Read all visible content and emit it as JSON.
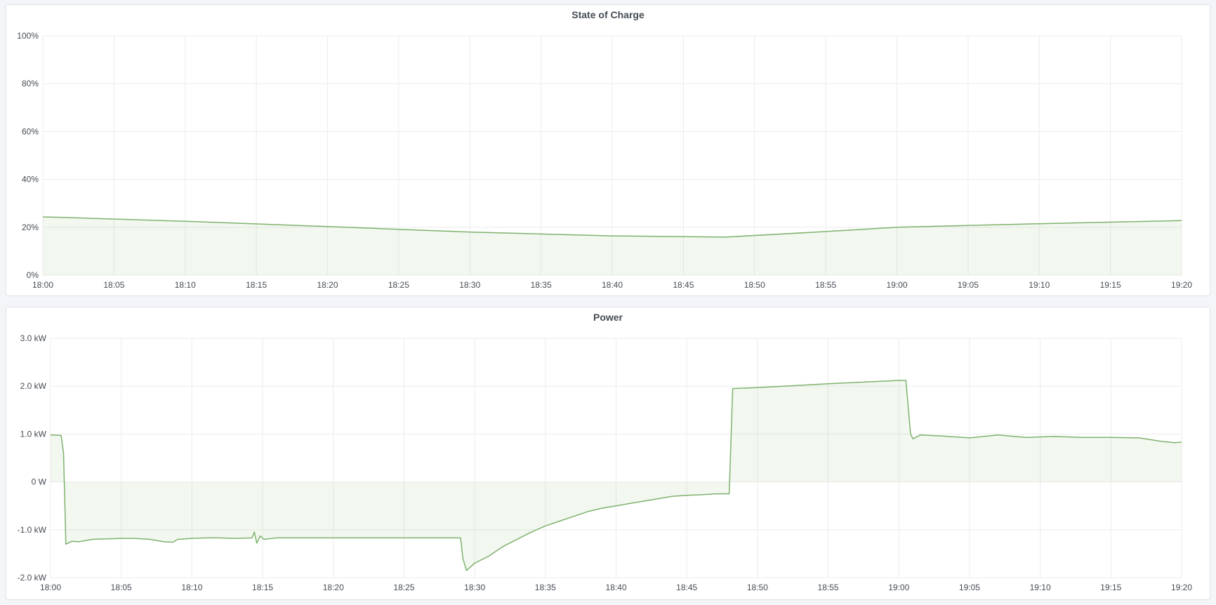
{
  "chart_data": [
    {
      "type": "area",
      "title": "State of Charge",
      "xlabel": "",
      "ylabel": "",
      "x_ticks": [
        "18:00",
        "18:05",
        "18:10",
        "18:15",
        "18:20",
        "18:25",
        "18:30",
        "18:35",
        "18:40",
        "18:45",
        "18:50",
        "18:55",
        "19:00",
        "19:05",
        "19:10",
        "19:15",
        "19:20"
      ],
      "y_ticks": [
        "0%",
        "20%",
        "40%",
        "60%",
        "80%",
        "100%"
      ],
      "y_tick_values": [
        0,
        20,
        40,
        60,
        80,
        100
      ],
      "xlim": [
        "18:00:00",
        "19:20:00"
      ],
      "ylim": [
        0,
        100
      ],
      "grid": true,
      "line_color": "#7eb26d",
      "series": [
        {
          "x": [
            "18:00:00",
            "18:01:00",
            "18:10:00",
            "18:20:00",
            "18:30:00",
            "18:40:00",
            "18:48:00",
            "18:55:00",
            "19:00:00",
            "19:10:00",
            "19:20:00"
          ],
          "values": [
            24.3,
            24.2,
            22.5,
            20.3,
            18.0,
            16.4,
            15.9,
            18.2,
            20.0,
            21.5,
            22.8
          ]
        }
      ]
    },
    {
      "type": "area",
      "title": "Power",
      "xlabel": "",
      "ylabel": "",
      "x_ticks": [
        "18:00",
        "18:05",
        "18:10",
        "18:15",
        "18:20",
        "18:25",
        "18:30",
        "18:35",
        "18:40",
        "18:45",
        "18:50",
        "18:55",
        "19:00",
        "19:05",
        "19:10",
        "19:15",
        "19:20"
      ],
      "y_ticks": [
        "-2.0 kW",
        "-1.0 kW",
        "0 W",
        "1.0 kW",
        "2.0 kW",
        "3.0 kW"
      ],
      "y_tick_values": [
        -2,
        -1,
        0,
        1,
        2,
        3
      ],
      "xlim": [
        "18:00:00",
        "19:20:00"
      ],
      "ylim": [
        -2,
        3
      ],
      "grid": true,
      "line_color": "#7eb26d",
      "series": [
        {
          "x": [
            "18:00:00",
            "18:00:45",
            "18:00:55",
            "18:01:05",
            "18:01:30",
            "18:02:00",
            "18:03:00",
            "18:04:00",
            "18:05:00",
            "18:06:00",
            "18:07:00",
            "18:08:00",
            "18:08:40",
            "18:09:00",
            "18:10:00",
            "18:11:00",
            "18:12:00",
            "18:13:00",
            "18:14:15",
            "18:14:25",
            "18:14:35",
            "18:14:50",
            "18:15:05",
            "18:16:00",
            "18:18:00",
            "18:20:00",
            "18:22:00",
            "18:24:00",
            "18:26:00",
            "18:28:00",
            "18:29:00",
            "18:29:10",
            "18:29:25",
            "18:30:00",
            "18:31:00",
            "18:32:00",
            "18:33:00",
            "18:34:00",
            "18:35:00",
            "18:36:00",
            "18:37:00",
            "18:38:00",
            "18:39:00",
            "18:40:00",
            "18:41:00",
            "18:42:00",
            "18:43:00",
            "18:44:00",
            "18:45:00",
            "18:46:00",
            "18:47:00",
            "18:48:00",
            "18:48:15",
            "18:50:00",
            "18:55:00",
            "19:00:00",
            "19:00:30",
            "19:00:50",
            "19:01:00",
            "19:01:30",
            "19:03:00",
            "19:05:00",
            "19:07:00",
            "19:09:00",
            "19:11:00",
            "19:13:00",
            "19:15:00",
            "19:17:00",
            "19:18:30",
            "19:19:30",
            "19:20:00"
          ],
          "values": [
            0.98,
            0.97,
            0.6,
            -1.3,
            -1.24,
            -1.25,
            -1.2,
            -1.19,
            -1.18,
            -1.18,
            -1.2,
            -1.25,
            -1.26,
            -1.2,
            -1.18,
            -1.17,
            -1.17,
            -1.18,
            -1.17,
            -1.05,
            -1.28,
            -1.13,
            -1.2,
            -1.17,
            -1.17,
            -1.17,
            -1.17,
            -1.17,
            -1.17,
            -1.17,
            -1.17,
            -1.6,
            -1.85,
            -1.7,
            -1.55,
            -1.35,
            -1.2,
            -1.05,
            -0.92,
            -0.82,
            -0.72,
            -0.62,
            -0.55,
            -0.5,
            -0.45,
            -0.4,
            -0.35,
            -0.3,
            -0.28,
            -0.27,
            -0.25,
            -0.25,
            1.95,
            1.97,
            2.05,
            2.12,
            2.12,
            1.0,
            0.9,
            0.98,
            0.96,
            0.92,
            0.98,
            0.93,
            0.95,
            0.93,
            0.93,
            0.92,
            0.85,
            0.82,
            0.83
          ]
        }
      ]
    }
  ]
}
